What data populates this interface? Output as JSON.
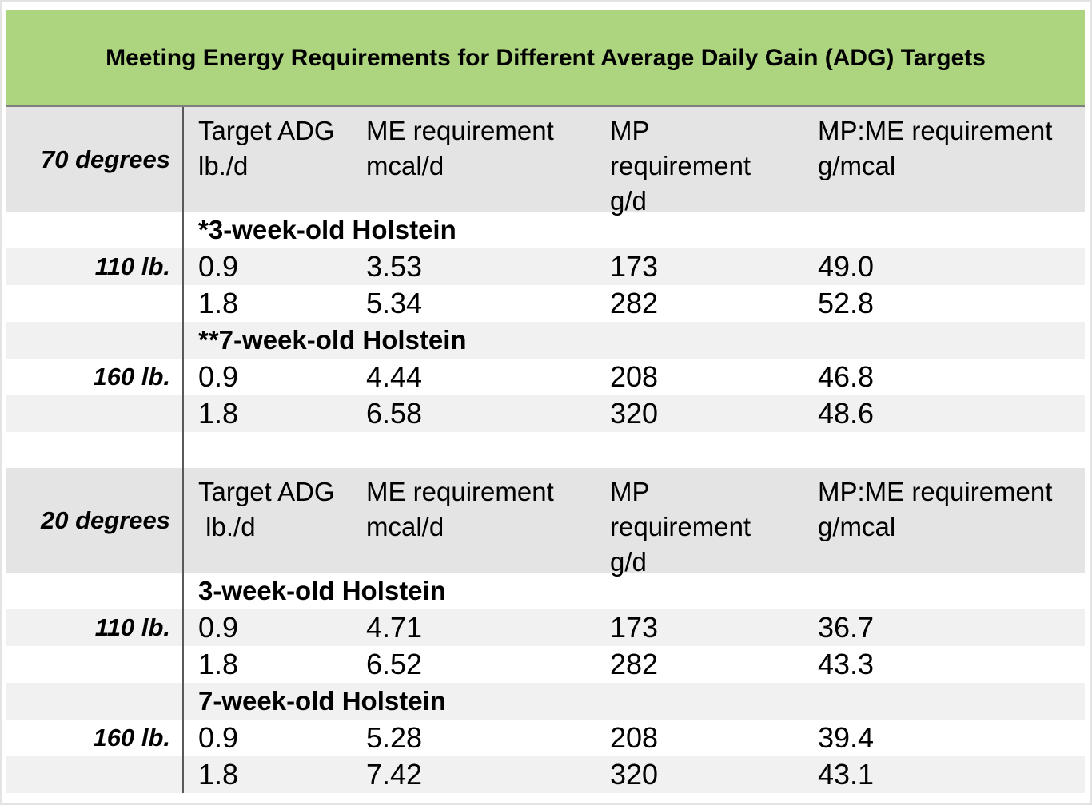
{
  "title": "Meeting Energy Requirements for Different Average Daily Gain (ADG) Targets",
  "colors": {
    "banner_green": "#add47e",
    "header_gray": "#e4e4e4",
    "stripe_gray": "#f1f1f1",
    "divider_dark": "#595959",
    "title_underline": "#7f7f7f",
    "outer_border": "#e3e3e3"
  },
  "sections": [
    {
      "temperature_label": "70 degrees",
      "column_headers": [
        "Target ADG\nlb./d",
        "ME requirement\nmcal/d",
        "MP\nrequirement\ng/d",
        "MP:ME requirement\ng/mcal"
      ],
      "groups": [
        {
          "weight_label": "110 lb.",
          "breed_header": "*3-week-old Holstein",
          "rows": [
            {
              "target_adg": "0.9",
              "me": "3.53",
              "mp": "173",
              "mp_me": "49.0"
            },
            {
              "target_adg": "1.8",
              "me": "5.34",
              "mp": "282",
              "mp_me": "52.8"
            }
          ]
        },
        {
          "weight_label": "160 lb.",
          "breed_header": "**7-week-old Holstein",
          "rows": [
            {
              "target_adg": "0.9",
              "me": "4.44",
              "mp": "208",
              "mp_me": "46.8"
            },
            {
              "target_adg": "1.8",
              "me": "6.58",
              "mp": "320",
              "mp_me": "48.6"
            }
          ]
        }
      ]
    },
    {
      "temperature_label": "20 degrees",
      "column_headers": [
        "Target ADG\n lb./d",
        "ME requirement\nmcal/d",
        "MP\nrequirement\ng/d",
        "MP:ME requirement\ng/mcal"
      ],
      "groups": [
        {
          "weight_label": "110 lb.",
          "breed_header": "3-week-old Holstein",
          "rows": [
            {
              "target_adg": "0.9",
              "me": "4.71",
              "mp": "173",
              "mp_me": "36.7"
            },
            {
              "target_adg": "1.8",
              "me": "6.52",
              "mp": "282",
              "mp_me": "43.3"
            }
          ]
        },
        {
          "weight_label": "160 lb.",
          "breed_header": "7-week-old Holstein",
          "rows": [
            {
              "target_adg": "0.9",
              "me": "5.28",
              "mp": "208",
              "mp_me": "39.4"
            },
            {
              "target_adg": "1.8",
              "me": "7.42",
              "mp": "320",
              "mp_me": "43.1"
            }
          ]
        }
      ]
    }
  ]
}
